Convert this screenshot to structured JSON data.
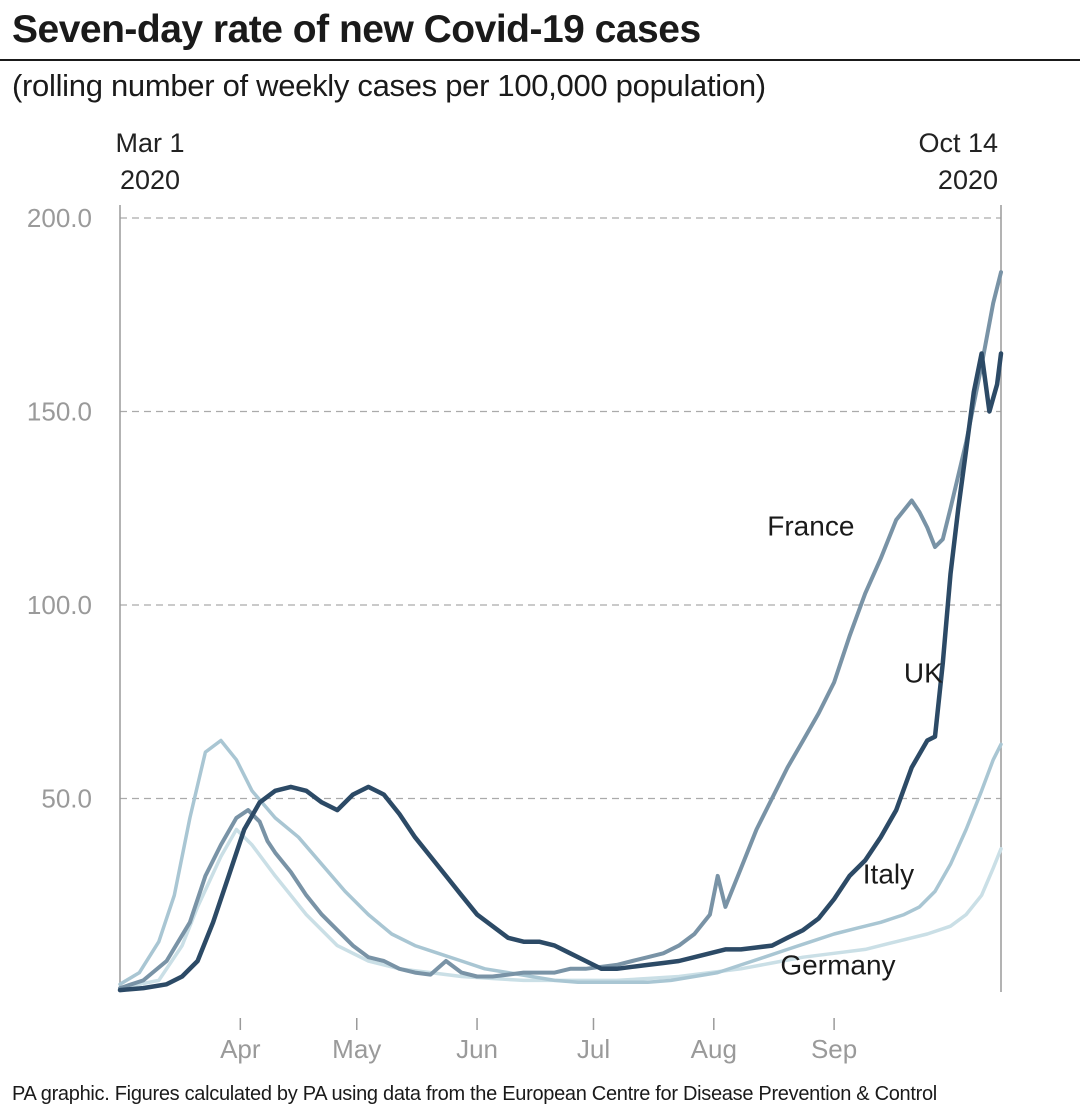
{
  "header": {
    "title": "Seven-day rate of new Covid-19 cases",
    "subtitle": "(rolling number of weekly cases per 100,000 population)"
  },
  "footer": {
    "source": "PA graphic. Figures calculated by PA using data from the European Centre for Disease Prevention & Control"
  },
  "colors": {
    "uk": "#2c4a66",
    "france": "#7993a6",
    "italy": "#a9c6d3",
    "germany": "#cadfe6"
  },
  "chart_data": {
    "type": "line",
    "title": "Seven-day rate of new Covid-19 cases",
    "xlabel": "",
    "ylabel": "",
    "x_unit": "days since Mar 1 2020",
    "xlim": [
      0,
      227
    ],
    "ylim": [
      0,
      200
    ],
    "grid": true,
    "start_label": [
      "Mar 1",
      "2020"
    ],
    "end_label": [
      "Oct 14",
      "2020"
    ],
    "y_ticks": [
      {
        "value": 200,
        "label": "200.0"
      },
      {
        "value": 150,
        "label": "150.0"
      },
      {
        "value": 100,
        "label": "100.0"
      },
      {
        "value": 50,
        "label": "50.0"
      }
    ],
    "x_ticks": [
      {
        "day": 31,
        "label": "Apr"
      },
      {
        "day": 61,
        "label": "May"
      },
      {
        "day": 92,
        "label": "Jun"
      },
      {
        "day": 122,
        "label": "Jul"
      },
      {
        "day": 153,
        "label": "Aug"
      },
      {
        "day": 184,
        "label": "Sep"
      }
    ],
    "series": [
      {
        "name": "Germany",
        "key": "germany",
        "label_at": [
          185,
          4.5
        ],
        "points": [
          [
            0,
            1
          ],
          [
            10,
            3
          ],
          [
            16,
            12
          ],
          [
            20,
            22
          ],
          [
            26,
            35
          ],
          [
            30,
            42
          ],
          [
            34,
            38
          ],
          [
            40,
            30
          ],
          [
            48,
            20
          ],
          [
            56,
            12
          ],
          [
            64,
            8
          ],
          [
            72,
            6
          ],
          [
            80,
            5
          ],
          [
            88,
            4
          ],
          [
            96,
            3.5
          ],
          [
            104,
            3
          ],
          [
            112,
            3
          ],
          [
            120,
            3
          ],
          [
            128,
            3
          ],
          [
            136,
            3.5
          ],
          [
            144,
            4
          ],
          [
            152,
            5
          ],
          [
            160,
            6
          ],
          [
            168,
            7.5
          ],
          [
            176,
            9
          ],
          [
            184,
            10
          ],
          [
            192,
            11
          ],
          [
            200,
            13
          ],
          [
            208,
            15
          ],
          [
            214,
            17
          ],
          [
            218,
            20
          ],
          [
            222,
            25
          ],
          [
            225,
            32
          ],
          [
            227,
            37
          ]
        ]
      },
      {
        "name": "Italy",
        "key": "italy",
        "label_at": [
          198,
          28
        ],
        "points": [
          [
            0,
            2
          ],
          [
            5,
            5
          ],
          [
            10,
            13
          ],
          [
            14,
            25
          ],
          [
            18,
            45
          ],
          [
            22,
            62
          ],
          [
            26,
            65
          ],
          [
            30,
            60
          ],
          [
            34,
            52
          ],
          [
            40,
            45
          ],
          [
            46,
            40
          ],
          [
            52,
            33
          ],
          [
            58,
            26
          ],
          [
            64,
            20
          ],
          [
            70,
            15
          ],
          [
            76,
            12
          ],
          [
            82,
            10
          ],
          [
            88,
            8
          ],
          [
            94,
            6
          ],
          [
            100,
            5
          ],
          [
            106,
            4
          ],
          [
            112,
            3
          ],
          [
            118,
            2.5
          ],
          [
            124,
            2.5
          ],
          [
            130,
            2.5
          ],
          [
            136,
            2.5
          ],
          [
            142,
            3
          ],
          [
            148,
            4
          ],
          [
            154,
            5
          ],
          [
            160,
            7
          ],
          [
            166,
            9
          ],
          [
            172,
            11
          ],
          [
            178,
            13
          ],
          [
            184,
            15
          ],
          [
            190,
            16.5
          ],
          [
            196,
            18
          ],
          [
            202,
            20
          ],
          [
            206,
            22
          ],
          [
            210,
            26
          ],
          [
            214,
            33
          ],
          [
            218,
            42
          ],
          [
            222,
            52
          ],
          [
            225,
            60
          ],
          [
            227,
            64
          ]
        ]
      },
      {
        "name": "France",
        "key": "france",
        "label_at": [
          178,
          118
        ],
        "points": [
          [
            0,
            1
          ],
          [
            6,
            3
          ],
          [
            12,
            8
          ],
          [
            18,
            18
          ],
          [
            22,
            30
          ],
          [
            26,
            38
          ],
          [
            30,
            45
          ],
          [
            33,
            47
          ],
          [
            36,
            44
          ],
          [
            38,
            39
          ],
          [
            40,
            36
          ],
          [
            44,
            31
          ],
          [
            48,
            25
          ],
          [
            52,
            20
          ],
          [
            56,
            16
          ],
          [
            60,
            12
          ],
          [
            64,
            9
          ],
          [
            68,
            8
          ],
          [
            72,
            6
          ],
          [
            76,
            5
          ],
          [
            80,
            4.5
          ],
          [
            84,
            8
          ],
          [
            88,
            5
          ],
          [
            92,
            4
          ],
          [
            96,
            4
          ],
          [
            100,
            4.5
          ],
          [
            104,
            5
          ],
          [
            108,
            5
          ],
          [
            112,
            5
          ],
          [
            116,
            6
          ],
          [
            120,
            6
          ],
          [
            124,
            6.5
          ],
          [
            128,
            7
          ],
          [
            132,
            8
          ],
          [
            136,
            9
          ],
          [
            140,
            10
          ],
          [
            144,
            12
          ],
          [
            148,
            15
          ],
          [
            152,
            20
          ],
          [
            154,
            30
          ],
          [
            156,
            22
          ],
          [
            160,
            32
          ],
          [
            164,
            42
          ],
          [
            168,
            50
          ],
          [
            172,
            58
          ],
          [
            176,
            65
          ],
          [
            180,
            72
          ],
          [
            184,
            80
          ],
          [
            188,
            92
          ],
          [
            192,
            103
          ],
          [
            196,
            112
          ],
          [
            200,
            122
          ],
          [
            204,
            127
          ],
          [
            206,
            124
          ],
          [
            208,
            120
          ],
          [
            210,
            115
          ],
          [
            212,
            117
          ],
          [
            214,
            125
          ],
          [
            218,
            142
          ],
          [
            222,
            162
          ],
          [
            225,
            178
          ],
          [
            227,
            186
          ]
        ]
      },
      {
        "name": "UK",
        "key": "uk",
        "label_at": [
          207,
          80
        ],
        "points": [
          [
            0,
            0.5
          ],
          [
            6,
            1
          ],
          [
            12,
            2
          ],
          [
            16,
            4
          ],
          [
            20,
            8
          ],
          [
            24,
            18
          ],
          [
            28,
            30
          ],
          [
            32,
            42
          ],
          [
            36,
            49
          ],
          [
            40,
            52
          ],
          [
            44,
            53
          ],
          [
            48,
            52
          ],
          [
            52,
            49
          ],
          [
            56,
            47
          ],
          [
            60,
            51
          ],
          [
            64,
            53
          ],
          [
            68,
            51
          ],
          [
            72,
            46
          ],
          [
            76,
            40
          ],
          [
            80,
            35
          ],
          [
            84,
            30
          ],
          [
            88,
            25
          ],
          [
            92,
            20
          ],
          [
            96,
            17
          ],
          [
            100,
            14
          ],
          [
            104,
            13
          ],
          [
            108,
            13
          ],
          [
            112,
            12
          ],
          [
            116,
            10
          ],
          [
            120,
            8
          ],
          [
            124,
            6
          ],
          [
            128,
            6
          ],
          [
            132,
            6.5
          ],
          [
            136,
            7
          ],
          [
            140,
            7.5
          ],
          [
            144,
            8
          ],
          [
            148,
            9
          ],
          [
            152,
            10
          ],
          [
            156,
            11
          ],
          [
            160,
            11
          ],
          [
            164,
            11.5
          ],
          [
            168,
            12
          ],
          [
            172,
            14
          ],
          [
            176,
            16
          ],
          [
            180,
            19
          ],
          [
            184,
            24
          ],
          [
            188,
            30
          ],
          [
            192,
            34
          ],
          [
            196,
            40
          ],
          [
            200,
            47
          ],
          [
            204,
            58
          ],
          [
            208,
            65
          ],
          [
            210,
            66
          ],
          [
            212,
            85
          ],
          [
            214,
            108
          ],
          [
            216,
            125
          ],
          [
            218,
            140
          ],
          [
            220,
            155
          ],
          [
            222,
            165
          ],
          [
            224,
            150
          ],
          [
            226,
            157
          ],
          [
            227,
            165
          ]
        ]
      }
    ]
  }
}
